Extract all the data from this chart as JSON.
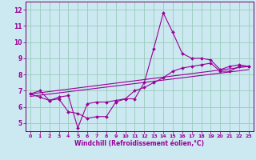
{
  "title": "",
  "xlabel": "Windchill (Refroidissement éolien,°C)",
  "bg_color": "#cce8f0",
  "grid_color": "#99ccbb",
  "line_color": "#990099",
  "spine_color": "#660066",
  "xlim": [
    -0.5,
    23.5
  ],
  "ylim": [
    4.5,
    12.5
  ],
  "yticks": [
    5,
    6,
    7,
    8,
    9,
    10,
    11,
    12
  ],
  "xticks": [
    0,
    1,
    2,
    3,
    4,
    5,
    6,
    7,
    8,
    9,
    10,
    11,
    12,
    13,
    14,
    15,
    16,
    17,
    18,
    19,
    20,
    21,
    22,
    23
  ],
  "series1_x": [
    0,
    1,
    2,
    3,
    4,
    5,
    6,
    7,
    8,
    9,
    10,
    11,
    12,
    13,
    14,
    15,
    16,
    17,
    18,
    19,
    20,
    21,
    22,
    23
  ],
  "series1_y": [
    6.8,
    7.0,
    6.4,
    6.5,
    5.7,
    5.6,
    5.3,
    5.4,
    5.4,
    6.3,
    6.5,
    6.5,
    7.5,
    9.6,
    11.8,
    10.6,
    9.3,
    9.0,
    9.0,
    8.9,
    8.3,
    8.5,
    8.6,
    8.5
  ],
  "series2_x": [
    0,
    1,
    2,
    3,
    4,
    5,
    6,
    7,
    8,
    9,
    10,
    11,
    12,
    13,
    14,
    15,
    16,
    17,
    18,
    19,
    20,
    21,
    22,
    23
  ],
  "series2_y": [
    6.8,
    6.6,
    6.4,
    6.6,
    6.7,
    4.7,
    6.2,
    6.3,
    6.3,
    6.4,
    6.5,
    7.0,
    7.2,
    7.5,
    7.8,
    8.2,
    8.4,
    8.5,
    8.6,
    8.7,
    8.2,
    8.2,
    8.5,
    8.5
  ],
  "series3_x": [
    0,
    23
  ],
  "series3_y": [
    6.8,
    8.5
  ],
  "series4_x": [
    0,
    23
  ],
  "series4_y": [
    6.65,
    8.3
  ],
  "xlabel_fontsize": 5.5,
  "tick_fontsize_x": 4.5,
  "tick_fontsize_y": 5.5,
  "marker_size": 2.0,
  "linewidth": 0.8
}
